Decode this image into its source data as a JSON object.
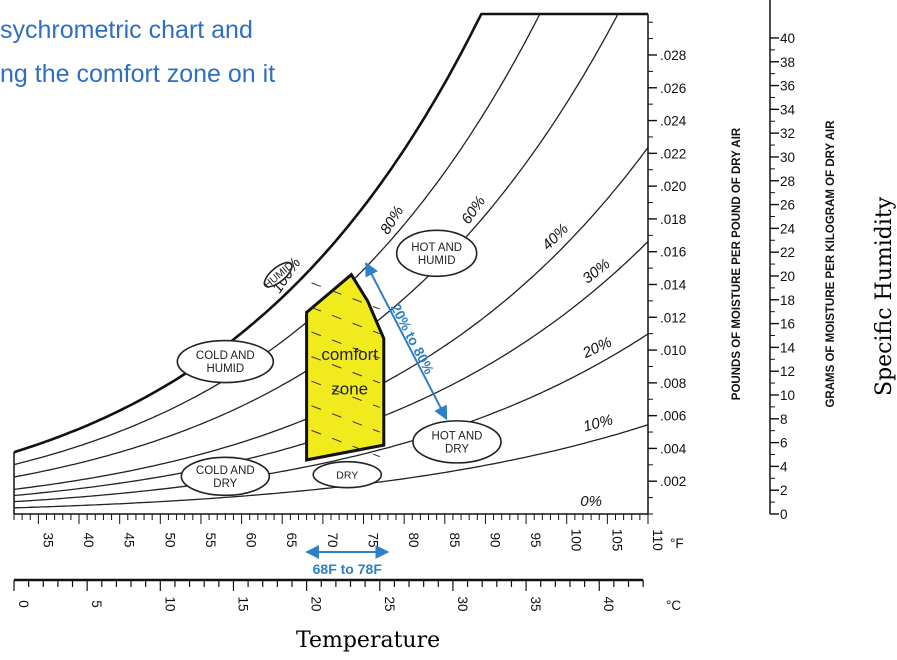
{
  "title": {
    "line1": "sychrometric chart and",
    "line2": "ng the comfort zone on it",
    "color": "#2f6fc0"
  },
  "chart_data": {
    "type": "line",
    "x_axis_f": {
      "ticks": [
        "35",
        "40",
        "45",
        "50",
        "55",
        "60",
        "65",
        "70",
        "75",
        "80",
        "85",
        "90",
        "95",
        "100",
        "105",
        "110"
      ],
      "unit": "°F"
    },
    "x_axis_c": {
      "ticks": [
        "0",
        "5",
        "10",
        "15",
        "20",
        "25",
        "30",
        "35",
        "40"
      ],
      "unit": "°C"
    },
    "y_axis_lb": {
      "ticks": [
        ".002",
        ".004",
        ".006",
        ".008",
        ".010",
        ".012",
        ".014",
        ".016",
        ".018",
        ".020",
        ".022",
        ".024",
        ".026",
        ".028"
      ],
      "label": "POUNDS OF MOISTURE PER POUND OF DRY AIR"
    },
    "y_axis_g": {
      "ticks": [
        "0",
        "2",
        "4",
        "6",
        "8",
        "10",
        "12",
        "14",
        "16",
        "18",
        "20",
        "22",
        "24",
        "26",
        "28",
        "30",
        "32",
        "34",
        "36",
        "38",
        "40"
      ],
      "label": "GRAMS OF MOISTURE PER KILOGRAM OF DRY AIR"
    },
    "series": [
      {
        "name": "100%",
        "rh": 1.0
      },
      {
        "name": "80%",
        "rh": 0.8
      },
      {
        "name": "60%",
        "rh": 0.6
      },
      {
        "name": "40%",
        "rh": 0.4
      },
      {
        "name": "30%",
        "rh": 0.3
      },
      {
        "name": "20%",
        "rh": 0.2
      },
      {
        "name": "10%",
        "rh": 0.1
      },
      {
        "name": "0%",
        "rh": 0.0
      }
    ],
    "comfort_zone": {
      "label_line1": "comfort",
      "label_line2": "zone",
      "fill": "#f1eb1d",
      "vertices_f_w": [
        [
          68,
          0.0033
        ],
        [
          68,
          0.0123
        ],
        [
          73.5,
          0.0146
        ],
        [
          75.5,
          0.013
        ],
        [
          77.5,
          0.0107
        ],
        [
          77.5,
          0.0042
        ]
      ]
    },
    "regions": [
      {
        "id": "humid",
        "label": "HUMID",
        "center": [
          64.5,
          0.0146
        ],
        "rotate": -40,
        "rx": 17,
        "ry": 7
      },
      {
        "id": "hot-and-humid",
        "label": "HOT AND\nHUMID",
        "center": [
          84,
          0.0159
        ],
        "rotate": 0,
        "rx": 40,
        "ry": 23
      },
      {
        "id": "cold-and-humid",
        "label": "COLD AND\nHUMID",
        "center": [
          58,
          0.0093
        ],
        "rotate": 0,
        "rx": 48,
        "ry": 21
      },
      {
        "id": "hot-and-dry",
        "label": "HOT AND\nDRY",
        "center": [
          86.5,
          0.0044
        ],
        "rotate": 0,
        "rx": 44,
        "ry": 21
      },
      {
        "id": "cold-and-dry",
        "label": "COLD AND\nDRY",
        "center": [
          58,
          0.0023
        ],
        "rotate": 0,
        "rx": 44,
        "ry": 19
      },
      {
        "id": "dry",
        "label": "DRY",
        "center": [
          73,
          0.0024
        ],
        "rotate": 0,
        "rx": 34,
        "ry": 13
      }
    ],
    "annotations": {
      "rh_range": "20% to 80%",
      "temp_range": "68F to 78F",
      "color": "#2f7fc6"
    },
    "x_title": "Temperature",
    "y_title": "Specific Humidity",
    "grid": false
  }
}
